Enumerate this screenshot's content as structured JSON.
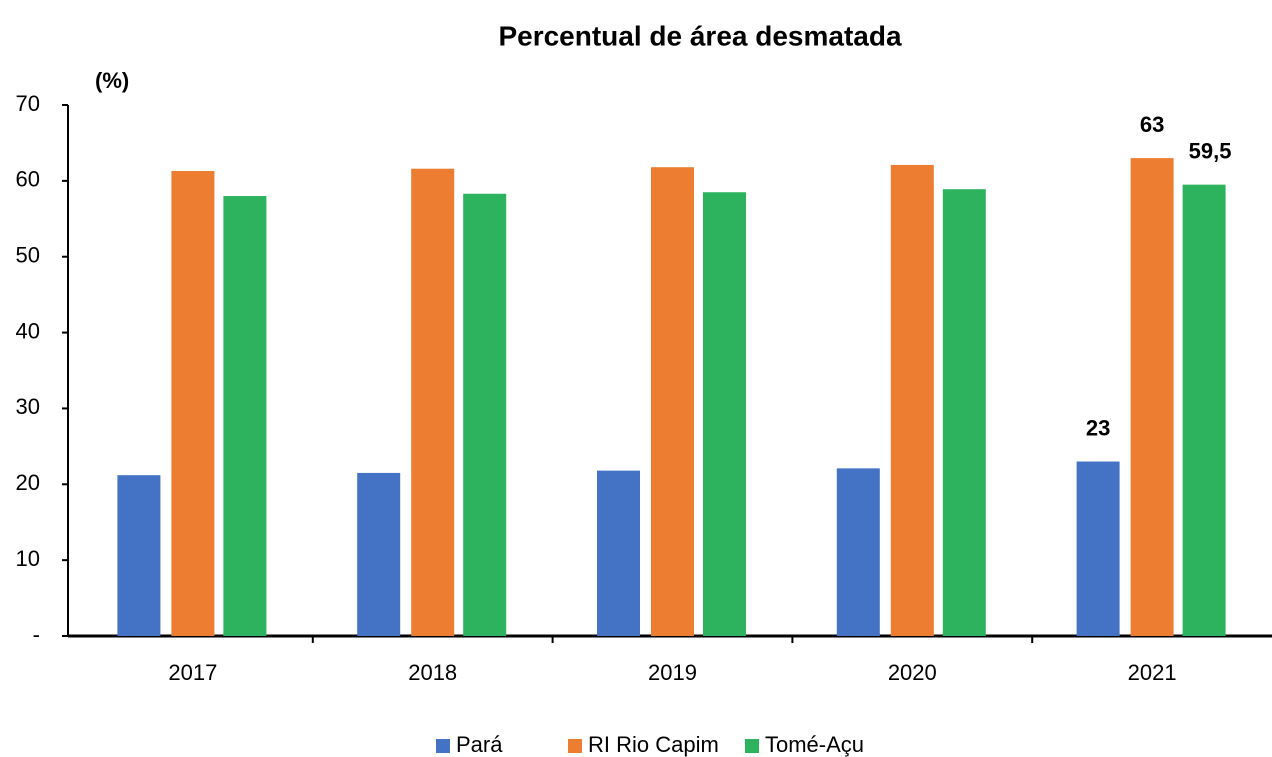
{
  "chart_data": {
    "type": "bar",
    "title": "Percentual de área desmatada",
    "y_label": "(%)",
    "categories": [
      "2017",
      "2018",
      "2019",
      "2020",
      "2021"
    ],
    "series": [
      {
        "name": "Pará",
        "color": "#4472c4",
        "values": [
          21.2,
          21.5,
          21.8,
          22.1,
          23
        ],
        "value_labels": [
          null,
          null,
          null,
          null,
          "23"
        ]
      },
      {
        "name": "RI Rio Capim",
        "color": "#ed7d31",
        "values": [
          61.3,
          61.6,
          61.8,
          62.1,
          63
        ],
        "value_labels": [
          null,
          null,
          null,
          null,
          "63"
        ]
      },
      {
        "name": "Tomé-Açu",
        "color": "#2db35d",
        "values": [
          58.0,
          58.3,
          58.5,
          58.9,
          59.5
        ],
        "value_labels": [
          null,
          null,
          null,
          null,
          "59,5"
        ]
      }
    ],
    "ylim": [
      0,
      70
    ],
    "yticks": [
      {
        "value": 0,
        "label": "-"
      },
      10,
      20,
      30,
      40,
      50,
      60,
      70
    ],
    "grid": false,
    "legend": "bottom"
  }
}
